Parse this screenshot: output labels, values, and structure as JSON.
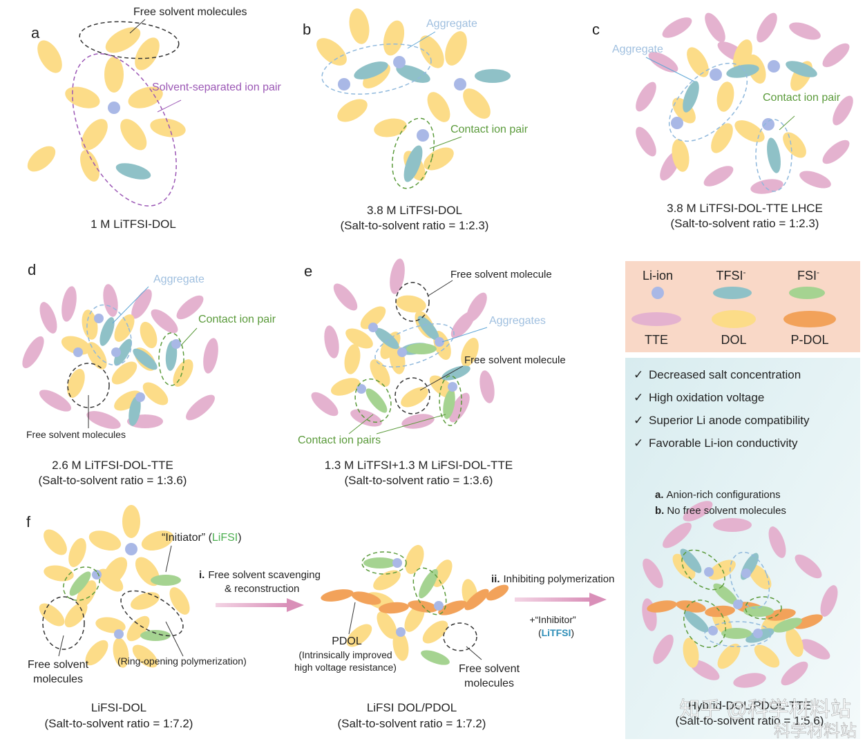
{
  "colors": {
    "li_ion": "#a9b8e6",
    "tfsi": "#8fc1c7",
    "fsi": "#a5d391",
    "tte": "#e4b2cf",
    "dol": "#fcdc88",
    "pdol": "#f2a25a",
    "aggregate_text": "#9fbfdf",
    "contact_text": "#5a9a3a",
    "sip_text": "#9b57b5",
    "inhibitor_text": "#2f8fb8",
    "initiator_text": "#4caf50",
    "legend_bg": "#f9d8c7",
    "features_bg": "#dceef0"
  },
  "panels": {
    "a": {
      "label": "a",
      "caption_line1": "1 M LiTFSI-DOL",
      "ann_free": "Free solvent molecules",
      "ann_sip": "Solvent-separated ion pair"
    },
    "b": {
      "label": "b",
      "caption_line1": "3.8 M LiTFSI-DOL",
      "caption_line2": "(Salt-to-solvent ratio = 1:2.3)",
      "ann_aggregate": "Aggregate",
      "ann_contact": "Contact ion pair"
    },
    "c": {
      "label": "c",
      "caption_line1": "3.8 M LiTFSI-DOL-TTE LHCE",
      "caption_line2": "(Salt-to-solvent ratio = 1:2.3)",
      "ann_aggregate": "Aggregate",
      "ann_contact": "Contact ion pair"
    },
    "d": {
      "label": "d",
      "caption_line1": "2.6 M LiTFSI-DOL-TTE",
      "caption_line2": "(Salt-to-solvent ratio = 1:3.6)",
      "ann_aggregate": "Aggregate",
      "ann_contact": "Contact ion pair",
      "ann_free": "Free solvent molecules"
    },
    "e": {
      "label": "e",
      "caption_line1": "1.3 M LiTFSI+1.3 M LiFSI-DOL-TTE",
      "caption_line2": "(Salt-to-solvent ratio = 1:3.6)",
      "ann_free_top": "Free solvent molecule",
      "ann_aggregates": "Aggregates",
      "ann_free_mid": "Free solvent molecule",
      "ann_contact": "Contact ion pairs"
    },
    "f": {
      "label": "f",
      "left_caption_line1": "LiFSI-DOL",
      "left_caption_line2": "(Salt-to-solvent ratio = 1:7.2)",
      "mid_caption_line1": "LiFSI DOL/PDOL",
      "mid_caption_line2": "(Salt-to-solvent ratio = 1:7.2)",
      "right_caption_line1": "Hybrid-DOL/PDOL-TTE",
      "right_caption_line2": "(Salt-to-solvent ratio = 1:5.6)",
      "initiator_prefix": "“Initiator” (",
      "initiator_salt": "LiFSI",
      "initiator_suffix": ")",
      "ann_free_left_1": "Free solvent",
      "ann_free_left_2": "molecules",
      "ann_ring_opening": "(Ring-opening polymerization)",
      "step_i_num": "i.",
      "step_i_line1": "Free solvent scavenging",
      "step_i_line2": "& reconstruction",
      "step_ii_num": "ii.",
      "step_ii_text": "Inhibiting polymerization",
      "inhibitor_label": "+“Inhibitor”",
      "inhibitor_salt_open": "(",
      "inhibitor_salt": "LiTFSI",
      "inhibitor_salt_close": ")",
      "pdol_label": "PDOL",
      "pdol_note_1": "(Intrinsically improved",
      "pdol_note_2": "high voltage resistance)",
      "ann_free_mid_1": "Free solvent",
      "ann_free_mid_2": "molecules",
      "hybrid_a_bold": "a.",
      "hybrid_a_text": "Anion-rich configurations",
      "hybrid_b_bold": "b.",
      "hybrid_b_text": "No free solvent molecules"
    }
  },
  "legend": {
    "items": [
      {
        "label": "Li-ion",
        "icon": "li-ion-circle"
      },
      {
        "label": "TFSI",
        "sup": "-",
        "icon": "tfsi-ellipse"
      },
      {
        "label": "FSI",
        "sup": "-",
        "icon": "fsi-ellipse"
      },
      {
        "label": "TTE",
        "icon": "tte-ellipse"
      },
      {
        "label": "DOL",
        "icon": "dol-ellipse"
      },
      {
        "label": "P-DOL",
        "icon": "pdol-ellipse"
      }
    ]
  },
  "features": {
    "check_glyph": "✓",
    "items": [
      "Decreased salt concentration",
      "High oxidation voltage",
      "Superior Li anode compatibility",
      "Favorable Li-ion conductivity"
    ]
  },
  "watermark": {
    "line1": "知乎 @科学材料站",
    "line2": "科学材料站"
  }
}
